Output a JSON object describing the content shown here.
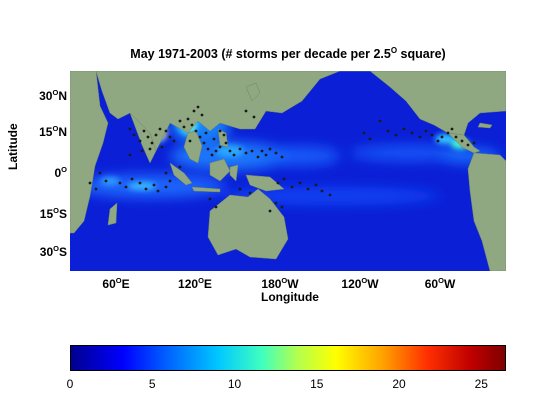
{
  "figure": {
    "title_main": "May  1971-2003 (# storms per decade per 2.5",
    "title_sup": "O",
    "title_end": " square)",
    "xlabel": "Longitude",
    "ylabel": "Latitude"
  },
  "axes": {
    "lat_ticks": [
      {
        "num": "30",
        "sup": "O",
        "hem": "N"
      },
      {
        "num": "15",
        "sup": "O",
        "hem": "N"
      },
      {
        "num": "0",
        "sup": "O",
        "hem": ""
      },
      {
        "num": "15",
        "sup": "O",
        "hem": "S"
      },
      {
        "num": "30",
        "sup": "O",
        "hem": "S"
      }
    ],
    "lon_ticks": [
      {
        "num": "60",
        "sup": "O",
        "hem": "E"
      },
      {
        "num": "120",
        "sup": "O",
        "hem": "E"
      },
      {
        "num": "180",
        "sup": "O",
        "hem": "W"
      },
      {
        "num": "120",
        "sup": "O",
        "hem": "W"
      },
      {
        "num": "60",
        "sup": "O",
        "hem": "W"
      }
    ]
  },
  "colorbar": {
    "ticks": [
      "0",
      "5",
      "10",
      "15",
      "20",
      "25"
    ],
    "range": [
      0,
      26.5
    ],
    "colormap": "jet"
  },
  "colors": {
    "ocean_base": "#0b1fd6",
    "land": "#8fa882",
    "storm_dot": "#1a1a1a"
  }
}
